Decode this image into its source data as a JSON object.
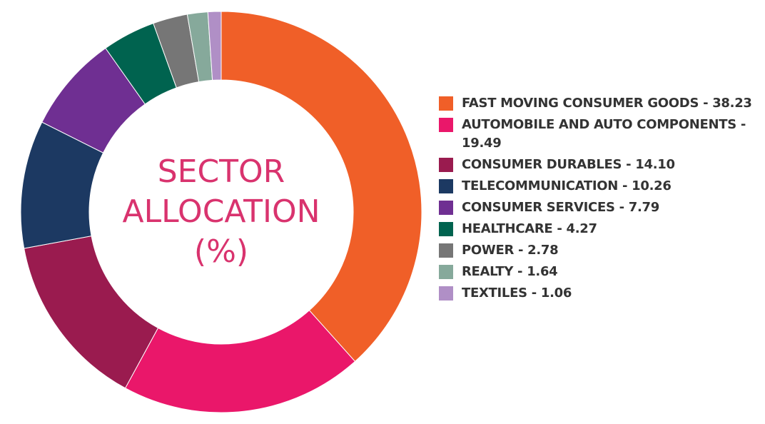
{
  "chart_data": {
    "type": "donut",
    "title": "SECTOR ALLOCATION (%)",
    "categories": [
      "FAST MOVING CONSUMER GOODS - 38.23",
      "AUTOMOBILE AND AUTO COMPONENTS - 19.49",
      "CONSUMER DURABLES - 14.10",
      "TELECOMMUNICATION - 10.26",
      "CONSUMER SERVICES - 7.79",
      "HEALTHCARE - 4.27",
      "POWER - 2.78",
      "REALTY - 1.64",
      "TEXTILES - 1.06"
    ],
    "values": [
      38.23,
      19.49,
      14.1,
      10.26,
      7.79,
      4.27,
      2.78,
      1.64,
      1.06
    ],
    "colors": [
      "#f05f28",
      "#ea176a",
      "#9a1b4f",
      "#1c3962",
      "#6f2f92",
      "#00634f",
      "#767676",
      "#86a99b",
      "#b08fc6"
    ],
    "legend": "right"
  }
}
